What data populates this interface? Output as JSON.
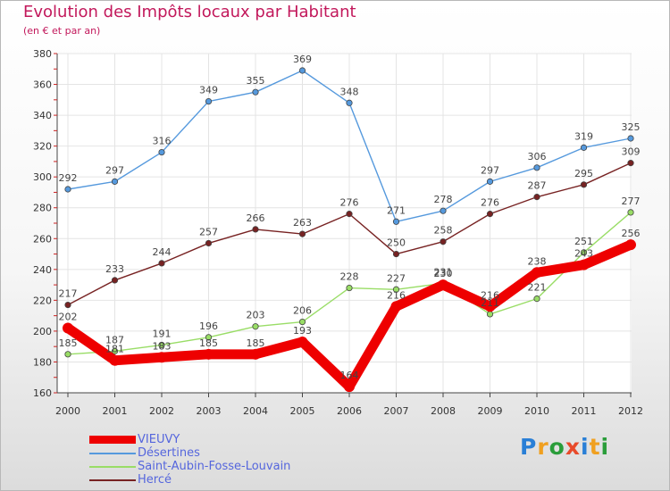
{
  "title": "Evolution des Impôts locaux par Habitant",
  "subtitle": "(en € et par an)",
  "brand": "Proxiti",
  "chart_data": {
    "type": "line",
    "categories": [
      "2000",
      "2001",
      "2002",
      "2003",
      "2004",
      "2005",
      "2006",
      "2007",
      "2008",
      "2009",
      "2010",
      "2011",
      "2012"
    ],
    "ylim": [
      160,
      380
    ],
    "yticks": [
      160,
      180,
      200,
      220,
      240,
      260,
      280,
      300,
      320,
      340,
      360,
      380
    ],
    "grid": true,
    "legend_position": "bottom-left",
    "series": [
      {
        "name": "VIEUVY",
        "color": "#ee0000",
        "values": [
          202,
          181,
          183,
          185,
          185,
          193,
          164,
          216,
          230,
          216,
          238,
          243,
          256
        ]
      },
      {
        "name": "Désertines",
        "color": "#5599dd",
        "values": [
          292,
          297,
          316,
          349,
          355,
          369,
          348,
          271,
          278,
          297,
          306,
          319,
          325
        ]
      },
      {
        "name": "Saint-Aubin-Fosse-Louvain",
        "color": "#99dd66",
        "values": [
          185,
          187,
          191,
          196,
          203,
          206,
          228,
          227,
          231,
          211,
          221,
          251,
          277
        ]
      },
      {
        "name": "Hercé",
        "color": "#772222",
        "values": [
          217,
          233,
          244,
          257,
          266,
          263,
          276,
          250,
          258,
          276,
          287,
          295,
          309
        ]
      }
    ]
  }
}
